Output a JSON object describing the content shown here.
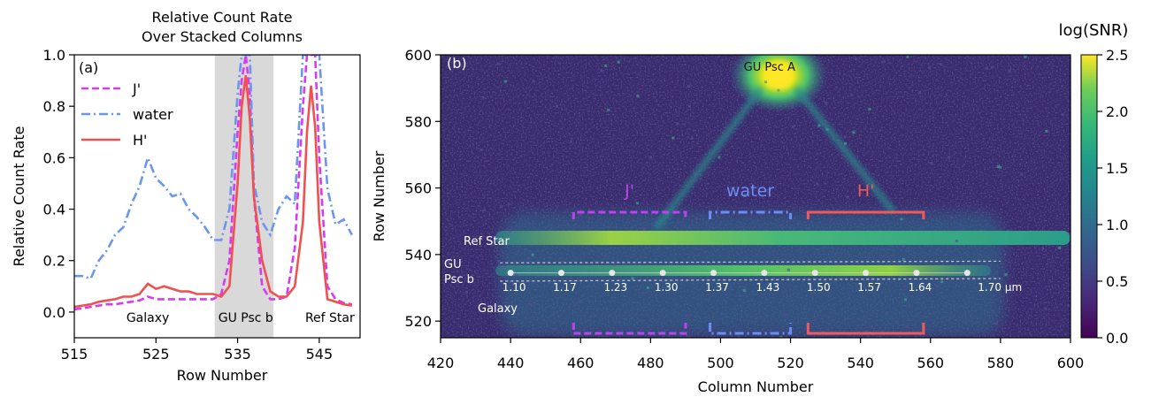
{
  "chart_data": [
    {
      "type": "line",
      "panel_label": "(a)",
      "title_line1": "Relative Count Rate",
      "title_line2": "Over Stacked Columns",
      "xlabel": "Row Number",
      "ylabel": "Relative Count Rate",
      "xlim": [
        515,
        550
      ],
      "ylim": [
        -0.1,
        1.0
      ],
      "xticks": [
        "515",
        "525",
        "535",
        "545"
      ],
      "yticks": [
        "0.0",
        "0.2",
        "0.4",
        "0.6",
        "0.8",
        "1.0"
      ],
      "shaded_band": [
        532.2,
        539.4
      ],
      "region_labels": [
        {
          "text": "Galaxy",
          "x": 524
        },
        {
          "text": "GU Psc b",
          "x": 536
        },
        {
          "text": "Ref Star",
          "x": 546.3
        }
      ],
      "legend_placement": "upper-left",
      "series": [
        {
          "name": "J'",
          "color": "#d63bf2",
          "style": "dashed",
          "x": [
            515,
            516,
            517,
            518,
            519,
            520,
            521,
            522,
            523,
            524,
            525,
            526,
            527,
            528,
            529,
            530,
            531,
            532,
            533,
            534,
            535,
            535.5,
            536,
            536.5,
            537,
            538,
            539,
            540,
            541,
            542,
            543,
            543.5,
            544,
            544.5,
            545,
            546,
            547,
            548,
            549
          ],
          "y": [
            0.01,
            0.015,
            0.02,
            0.025,
            0.03,
            0.03,
            0.035,
            0.04,
            0.045,
            0.06,
            0.05,
            0.05,
            0.05,
            0.05,
            0.05,
            0.05,
            0.05,
            0.05,
            0.07,
            0.2,
            0.7,
            0.9,
            1.0,
            0.85,
            0.45,
            0.1,
            0.05,
            0.05,
            0.06,
            0.25,
            0.8,
            1.0,
            1.0,
            1.0,
            0.6,
            0.1,
            0.05,
            0.035,
            0.03
          ]
        },
        {
          "name": "water",
          "color": "#6b96ee",
          "style": "dashdot",
          "x": [
            515,
            516,
            517,
            518,
            519,
            520,
            521,
            522,
            523,
            524,
            525,
            526,
            527,
            528,
            529,
            530,
            531,
            532,
            533,
            534,
            535,
            535.5,
            536,
            536.5,
            537,
            538,
            539,
            540,
            541,
            542,
            543,
            544,
            545,
            546,
            547,
            548,
            549
          ],
          "y": [
            0.14,
            0.14,
            0.13,
            0.2,
            0.24,
            0.3,
            0.33,
            0.42,
            0.49,
            0.6,
            0.52,
            0.49,
            0.45,
            0.46,
            0.4,
            0.37,
            0.33,
            0.28,
            0.28,
            0.4,
            0.85,
            1.0,
            1.0,
            1.0,
            0.5,
            0.35,
            0.3,
            0.4,
            0.45,
            0.42,
            1.0,
            1.0,
            1.0,
            0.48,
            0.34,
            0.36,
            0.3
          ]
        },
        {
          "name": "H'",
          "color": "#f05050",
          "style": "solid",
          "x": [
            515,
            516,
            517,
            518,
            519,
            520,
            521,
            522,
            523,
            524,
            525,
            526,
            527,
            528,
            529,
            530,
            531,
            532,
            533,
            534,
            535,
            535.5,
            536,
            536.5,
            537,
            538,
            539,
            540,
            541,
            542,
            543,
            543.5,
            544,
            544.5,
            545,
            546,
            547,
            548,
            549
          ],
          "y": [
            0.02,
            0.025,
            0.03,
            0.04,
            0.045,
            0.05,
            0.06,
            0.06,
            0.07,
            0.11,
            0.09,
            0.1,
            0.09,
            0.08,
            0.08,
            0.07,
            0.07,
            0.07,
            0.06,
            0.1,
            0.5,
            0.8,
            0.92,
            0.75,
            0.45,
            0.2,
            0.08,
            0.06,
            0.06,
            0.1,
            0.35,
            0.7,
            0.88,
            0.72,
            0.35,
            0.05,
            0.04,
            0.03,
            0.025
          ]
        }
      ]
    },
    {
      "type": "heatmap",
      "panel_label": "(b)",
      "xlabel": "Column Number",
      "ylabel": "Row Number",
      "xlim": [
        420,
        600
      ],
      "ylim": [
        515,
        600
      ],
      "xticks": [
        "420",
        "440",
        "460",
        "480",
        "500",
        "520",
        "540",
        "560",
        "580",
        "600"
      ],
      "yticks": [
        "520",
        "540",
        "560",
        "580",
        "600"
      ],
      "colorbar": {
        "label": "log(SNR)",
        "range": [
          0.0,
          2.5
        ],
        "ticks": [
          "0.0",
          "0.5",
          "1.0",
          "1.5",
          "2.0",
          "2.5"
        ],
        "colormap": "viridis"
      },
      "annotations": [
        {
          "text": "GU Psc A",
          "color": "#111111"
        },
        {
          "text": "Ref Star",
          "color": "#ffffff"
        },
        {
          "text": "GU",
          "color": "#ffffff"
        },
        {
          "text": "Psc b",
          "color": "#ffffff"
        },
        {
          "text": "Galaxy",
          "color": "#ffffff"
        }
      ],
      "wavelength_labels": [
        "1.10",
        "1.17",
        "1.23",
        "1.30",
        "1.37",
        "1.43",
        "1.50",
        "1.57",
        "1.64",
        "1.70 μm"
      ],
      "wavelength_columns": [
        440,
        454.5,
        469,
        483.5,
        498,
        512.5,
        527,
        541.5,
        556,
        570.5
      ],
      "trace_row": 534.5,
      "filter_brackets": [
        {
          "name": "J'",
          "color": "#bb44ee",
          "style": "dashed",
          "x": [
            458,
            490
          ]
        },
        {
          "name": "water",
          "color": "#6b8ef5",
          "style": "dashdot",
          "x": [
            497,
            520
          ]
        },
        {
          "name": "H'",
          "color": "#f05a5a",
          "style": "solid",
          "x": [
            525,
            558
          ]
        }
      ]
    }
  ]
}
